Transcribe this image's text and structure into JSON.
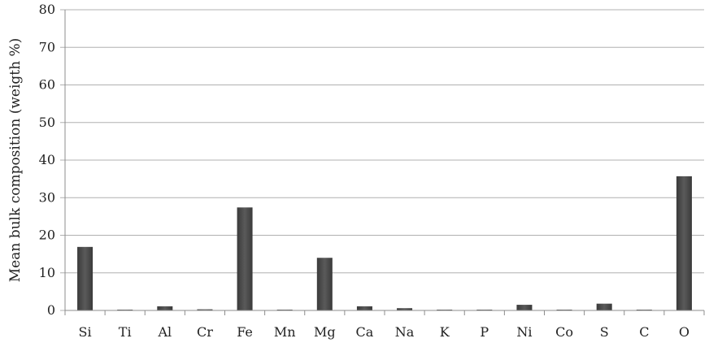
{
  "chart_data": {
    "type": "bar",
    "title": "",
    "xlabel": "",
    "ylabel": "Mean bulk composition (weigth %)",
    "ylim": [
      0,
      80
    ],
    "yticks": [
      0,
      10,
      20,
      30,
      40,
      50,
      60,
      70,
      80
    ],
    "grid": true,
    "legend": "none",
    "bar_color": "#4a4a4a",
    "categories": [
      "Si",
      "Ti",
      "Al",
      "Cr",
      "Fe",
      "Mn",
      "Mg",
      "Ca",
      "Na",
      "K",
      "P",
      "Ni",
      "Co",
      "S",
      "C",
      "O"
    ],
    "values": [
      16.9,
      0.05,
      1.1,
      0.3,
      27.4,
      0.05,
      14.0,
      1.1,
      0.6,
      0.05,
      0.05,
      1.5,
      0.05,
      1.8,
      0.05,
      35.7
    ]
  }
}
